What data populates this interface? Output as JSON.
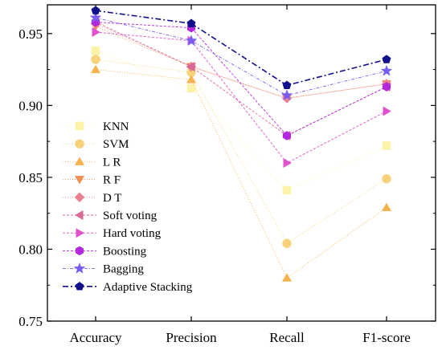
{
  "chart_data": {
    "type": "line",
    "categories": [
      "Accuracy",
      "Precision",
      "Recall",
      "F1-score"
    ],
    "ylim": [
      0.75,
      0.97
    ],
    "yticks": [
      "0.75",
      "0.80",
      "0.85",
      "0.90",
      "0.95"
    ],
    "ytick_values": [
      0.75,
      0.8,
      0.85,
      0.9,
      0.95
    ],
    "grid": false,
    "legend_position": "left",
    "series": [
      {
        "name": "KNN",
        "values": [
          0.938,
          0.912,
          0.841,
          0.872
        ],
        "color": "#fbf3a8",
        "marker": "square",
        "dash": "1,2"
      },
      {
        "name": "SVM",
        "values": [
          0.932,
          0.923,
          0.804,
          0.849
        ],
        "color": "#f7d27a",
        "marker": "circle",
        "dash": "1,2"
      },
      {
        "name": "L R",
        "values": [
          0.925,
          0.918,
          0.78,
          0.829
        ],
        "color": "#f5b24e",
        "marker": "triangle-up",
        "dash": "1,2"
      },
      {
        "name": "R F",
        "values": [
          0.955,
          0.927,
          0.905,
          0.915
        ],
        "color": "#f39050",
        "marker": "triangle-down",
        "dash": "1,2"
      },
      {
        "name": "D T",
        "values": [
          0.957,
          0.927,
          0.905,
          0.915
        ],
        "color": "#e98090",
        "marker": "diamond",
        "dash": "1,2"
      },
      {
        "name": "Soft voting",
        "values": [
          0.958,
          0.927,
          0.879,
          0.913
        ],
        "color": "#d96a96",
        "marker": "triangle-left",
        "dash": "3,2"
      },
      {
        "name": "Hard voting",
        "values": [
          0.951,
          0.945,
          0.86,
          0.896
        ],
        "color": "#e052cc",
        "marker": "triangle-right",
        "dash": "3,2"
      },
      {
        "name": "Boosting",
        "values": [
          0.958,
          0.954,
          0.879,
          0.913
        ],
        "color": "#b328dc",
        "marker": "hexagon",
        "dash": "3,2"
      },
      {
        "name": "Bagging",
        "values": [
          0.961,
          0.945,
          0.907,
          0.924
        ],
        "color": "#7a5cf2",
        "marker": "star",
        "dash": "4,2,1,2"
      },
      {
        "name": "Adaptive Stacking",
        "values": [
          0.966,
          0.957,
          0.914,
          0.932
        ],
        "color": "#10108c",
        "marker": "pentagon",
        "dash": "7,3,2,3"
      }
    ]
  }
}
